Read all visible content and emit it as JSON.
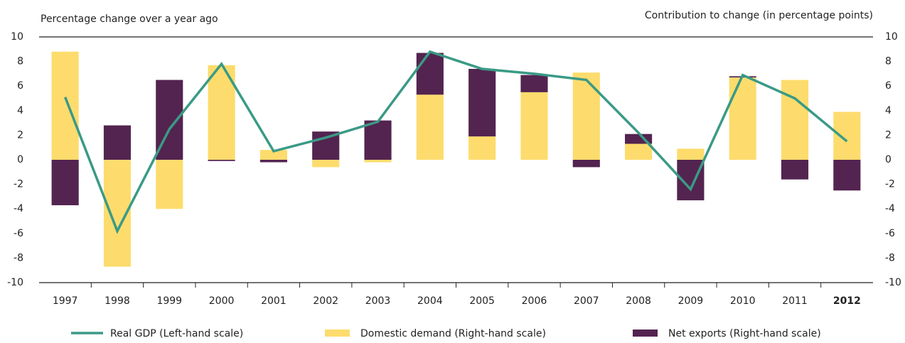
{
  "chart_data": {
    "type": "bar-line",
    "left_axis_label": "Percentage change over a year ago",
    "right_axis_label": "Contribution to change (in percentage points)",
    "categories": [
      "1997",
      "1998",
      "1999",
      "2000",
      "2001",
      "2002",
      "2003",
      "2004",
      "2005",
      "2006",
      "2007",
      "2008",
      "2009",
      "2010",
      "2011",
      "2012"
    ],
    "series": [
      {
        "name": "Real GDP (Left-hand scale)",
        "type": "line",
        "axis": "y",
        "color": "#3a9a86",
        "values": [
          5.1,
          -5.8,
          2.5,
          7.8,
          0.7,
          1.8,
          3.1,
          8.8,
          7.4,
          7.0,
          6.5,
          2.2,
          -2.4,
          6.9,
          5.0,
          1.5
        ]
      },
      {
        "name": "Domestic demand (Right-hand scale)",
        "type": "bar",
        "axis": "y2",
        "color": "#fddc6d",
        "values": [
          8.8,
          -8.7,
          -4.0,
          7.7,
          0.8,
          -0.6,
          -0.2,
          5.3,
          1.9,
          5.5,
          7.1,
          1.3,
          0.9,
          6.7,
          6.5,
          3.9
        ]
      },
      {
        "name": "Net exports (Right-hand scale)",
        "type": "bar",
        "axis": "y2",
        "color": "#532450",
        "values": [
          -3.7,
          2.8,
          6.5,
          -0.1,
          -0.2,
          2.3,
          3.2,
          3.4,
          5.5,
          1.4,
          -0.6,
          0.8,
          -3.3,
          0.1,
          -1.6,
          -2.5
        ]
      }
    ],
    "ylim": [
      -10,
      10
    ],
    "yticks": [
      -10,
      -8,
      -6,
      -4,
      -2,
      0,
      2,
      4,
      6,
      8,
      10
    ],
    "y2lim": [
      -10,
      10
    ],
    "y2ticks": [
      -10,
      -8,
      -6,
      -4,
      -2,
      0,
      2,
      4,
      6,
      8,
      10
    ],
    "stacked": true,
    "grid": false
  }
}
